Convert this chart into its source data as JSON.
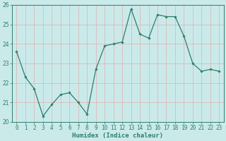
{
  "x": [
    0,
    1,
    2,
    3,
    4,
    5,
    6,
    7,
    8,
    9,
    10,
    11,
    12,
    13,
    14,
    15,
    16,
    17,
    18,
    19,
    20,
    21,
    22,
    23
  ],
  "y": [
    23.6,
    22.3,
    21.7,
    20.3,
    20.9,
    21.4,
    21.5,
    21.0,
    20.4,
    22.7,
    23.9,
    24.0,
    24.1,
    25.8,
    24.5,
    24.3,
    25.5,
    25.4,
    25.4,
    24.4,
    23.0,
    22.6,
    22.7,
    22.6
  ],
  "line_color": "#2e7d6e",
  "marker": "D",
  "marker_size": 1.8,
  "linewidth": 0.9,
  "bg_color": "#caeaea",
  "grid_color": "#deb8b8",
  "xlabel": "Humidex (Indice chaleur)",
  "xlabel_fontsize": 6.5,
  "tick_fontsize": 5.5,
  "ylim": [
    20,
    26
  ],
  "xlim": [
    -0.5,
    23.5
  ],
  "yticks": [
    20,
    21,
    22,
    23,
    24,
    25,
    26
  ],
  "xticks": [
    0,
    1,
    2,
    3,
    4,
    5,
    6,
    7,
    8,
    9,
    10,
    11,
    12,
    13,
    14,
    15,
    16,
    17,
    18,
    19,
    20,
    21,
    22,
    23
  ]
}
